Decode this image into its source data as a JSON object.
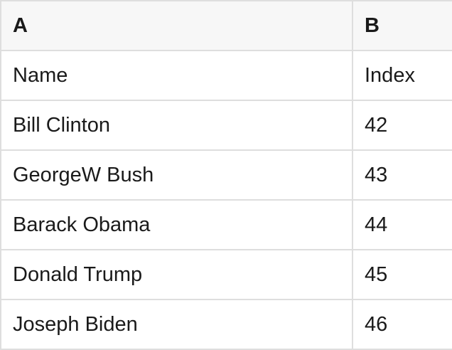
{
  "table": {
    "column_headers": {
      "a": "A",
      "b": "B"
    },
    "rows": [
      {
        "name": "Name",
        "index": "Index"
      },
      {
        "name": "Bill Clinton",
        "index": "42"
      },
      {
        "name": "GeorgeW Bush",
        "index": "43"
      },
      {
        "name": "Barack Obama",
        "index": "44"
      },
      {
        "name": "Donald Trump",
        "index": "45"
      },
      {
        "name": "Joseph Biden",
        "index": "46"
      }
    ]
  },
  "colors": {
    "header_background": "#f7f7f7",
    "grid_border": "#dedede",
    "cell_background": "#ffffff",
    "text": "#1a1a1a"
  }
}
